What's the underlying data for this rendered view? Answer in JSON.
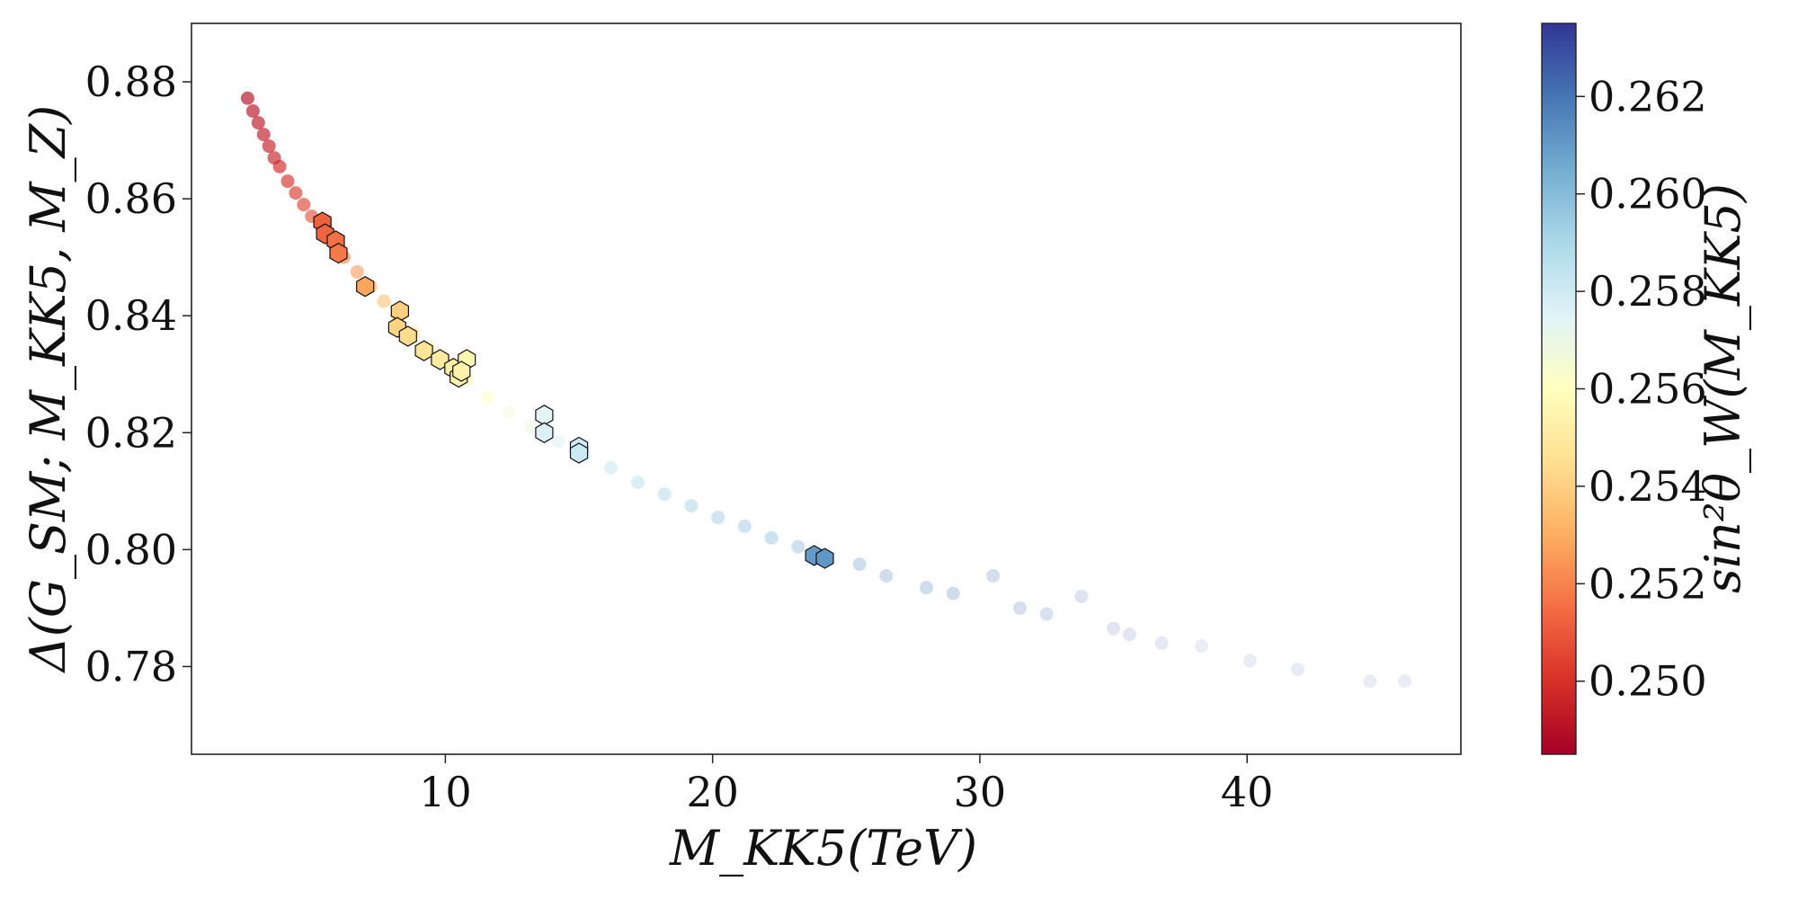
{
  "chart_data": {
    "type": "scatter",
    "title": "",
    "xlabel": "M_KK5(TeV)",
    "ylabel": "Δ(G_SM; M_KK5, M_Z)",
    "xlim": [
      0.5,
      48.0
    ],
    "ylim": [
      0.765,
      0.89
    ],
    "x_ticks": [
      10,
      20,
      30,
      40
    ],
    "y_ticks": [
      0.78,
      0.8,
      0.82,
      0.84,
      0.86,
      0.88
    ],
    "grid": false,
    "colorbar": {
      "label": "sin²θ_W(M_KK5)",
      "range": [
        0.2485,
        0.2635
      ],
      "ticks": [
        0.25,
        0.252,
        0.254,
        0.256,
        0.258,
        0.26,
        0.262
      ],
      "colormap": "RdYlBu",
      "colors": [
        "#a50026",
        "#d73027",
        "#f46d43",
        "#fdae61",
        "#fee090",
        "#ffffbf",
        "#e0f3f8",
        "#abd9e9",
        "#74add1",
        "#4575b4",
        "#313695"
      ]
    },
    "series": [
      {
        "marker": "circle",
        "points": [
          {
            "x": 2.6,
            "y": 0.8772,
            "c": 0.249
          },
          {
            "x": 2.8,
            "y": 0.875,
            "c": 0.2491
          },
          {
            "x": 3.0,
            "y": 0.873,
            "c": 0.2492
          },
          {
            "x": 3.2,
            "y": 0.871,
            "c": 0.2493
          },
          {
            "x": 3.4,
            "y": 0.869,
            "c": 0.2494
          },
          {
            "x": 3.6,
            "y": 0.867,
            "c": 0.2495
          },
          {
            "x": 3.8,
            "y": 0.8655,
            "c": 0.2497
          },
          {
            "x": 4.1,
            "y": 0.863,
            "c": 0.2499
          },
          {
            "x": 4.4,
            "y": 0.861,
            "c": 0.2501
          },
          {
            "x": 4.7,
            "y": 0.859,
            "c": 0.2504
          },
          {
            "x": 5.0,
            "y": 0.857,
            "c": 0.2507
          },
          {
            "x": 5.4,
            "y": 0.855,
            "c": 0.2511
          },
          {
            "x": 5.8,
            "y": 0.8525,
            "c": 0.2515
          },
          {
            "x": 6.2,
            "y": 0.85,
            "c": 0.252
          },
          {
            "x": 6.7,
            "y": 0.8475,
            "c": 0.2525
          },
          {
            "x": 7.2,
            "y": 0.845,
            "c": 0.253
          },
          {
            "x": 7.7,
            "y": 0.8425,
            "c": 0.2535
          },
          {
            "x": 8.2,
            "y": 0.84,
            "c": 0.254
          },
          {
            "x": 8.8,
            "y": 0.837,
            "c": 0.2546
          },
          {
            "x": 9.4,
            "y": 0.8345,
            "c": 0.255
          },
          {
            "x": 10.0,
            "y": 0.832,
            "c": 0.2553
          },
          {
            "x": 10.8,
            "y": 0.829,
            "c": 0.2556
          },
          {
            "x": 11.6,
            "y": 0.826,
            "c": 0.2561
          },
          {
            "x": 12.4,
            "y": 0.8235,
            "c": 0.2566
          },
          {
            "x": 13.2,
            "y": 0.821,
            "c": 0.257
          },
          {
            "x": 14.2,
            "y": 0.8185,
            "c": 0.2576
          },
          {
            "x": 15.2,
            "y": 0.816,
            "c": 0.2581
          },
          {
            "x": 16.2,
            "y": 0.814,
            "c": 0.2585
          },
          {
            "x": 17.2,
            "y": 0.8115,
            "c": 0.2589
          },
          {
            "x": 18.2,
            "y": 0.8095,
            "c": 0.2593
          },
          {
            "x": 19.2,
            "y": 0.8075,
            "c": 0.2596
          },
          {
            "x": 20.2,
            "y": 0.8055,
            "c": 0.26
          },
          {
            "x": 21.2,
            "y": 0.804,
            "c": 0.2602
          },
          {
            "x": 22.2,
            "y": 0.802,
            "c": 0.2605
          },
          {
            "x": 23.2,
            "y": 0.8005,
            "c": 0.2607
          },
          {
            "x": 24.2,
            "y": 0.799,
            "c": 0.2609
          },
          {
            "x": 25.5,
            "y": 0.7975,
            "c": 0.2612
          },
          {
            "x": 26.5,
            "y": 0.7955,
            "c": 0.2614
          },
          {
            "x": 28.0,
            "y": 0.7935,
            "c": 0.2617
          },
          {
            "x": 29.0,
            "y": 0.7925,
            "c": 0.2619
          },
          {
            "x": 30.5,
            "y": 0.7955,
            "c": 0.2621
          },
          {
            "x": 31.5,
            "y": 0.79,
            "c": 0.2623
          },
          {
            "x": 32.5,
            "y": 0.789,
            "c": 0.2624
          },
          {
            "x": 33.8,
            "y": 0.792,
            "c": 0.2626
          },
          {
            "x": 35.0,
            "y": 0.7865,
            "c": 0.2627
          },
          {
            "x": 35.6,
            "y": 0.7855,
            "c": 0.2628
          },
          {
            "x": 36.8,
            "y": 0.784,
            "c": 0.2629
          },
          {
            "x": 38.3,
            "y": 0.7835,
            "c": 0.263
          },
          {
            "x": 40.1,
            "y": 0.781,
            "c": 0.2631
          },
          {
            "x": 41.9,
            "y": 0.7795,
            "c": 0.2632
          },
          {
            "x": 44.6,
            "y": 0.7775,
            "c": 0.2633
          },
          {
            "x": 45.9,
            "y": 0.7775,
            "c": 0.2634
          }
        ]
      },
      {
        "marker": "hexagon",
        "points": [
          {
            "x": 5.4,
            "y": 0.856,
            "c": 0.2512
          },
          {
            "x": 5.5,
            "y": 0.854,
            "c": 0.2513
          },
          {
            "x": 5.9,
            "y": 0.8528,
            "c": 0.2516
          },
          {
            "x": 6.0,
            "y": 0.8507,
            "c": 0.2518
          },
          {
            "x": 7.0,
            "y": 0.845,
            "c": 0.2528
          },
          {
            "x": 8.3,
            "y": 0.8408,
            "c": 0.254
          },
          {
            "x": 8.2,
            "y": 0.838,
            "c": 0.2541
          },
          {
            "x": 8.6,
            "y": 0.8365,
            "c": 0.2544
          },
          {
            "x": 9.2,
            "y": 0.834,
            "c": 0.2547
          },
          {
            "x": 9.8,
            "y": 0.8325,
            "c": 0.255
          },
          {
            "x": 10.3,
            "y": 0.831,
            "c": 0.2552
          },
          {
            "x": 10.5,
            "y": 0.8295,
            "c": 0.2553
          },
          {
            "x": 10.8,
            "y": 0.8325,
            "c": 0.2555
          },
          {
            "x": 10.6,
            "y": 0.8305,
            "c": 0.2554
          },
          {
            "x": 13.7,
            "y": 0.823,
            "c": 0.2574
          },
          {
            "x": 13.7,
            "y": 0.82,
            "c": 0.2576
          },
          {
            "x": 15.0,
            "y": 0.8175,
            "c": 0.258
          },
          {
            "x": 15.0,
            "y": 0.8165,
            "c": 0.2581
          },
          {
            "x": 23.8,
            "y": 0.799,
            "c": 0.261
          },
          {
            "x": 24.2,
            "y": 0.7985,
            "c": 0.2611
          }
        ]
      }
    ]
  }
}
